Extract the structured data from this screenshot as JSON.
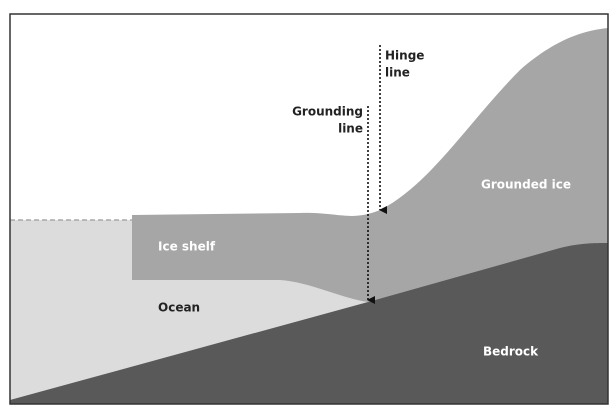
{
  "labels": {
    "hinge_line": [
      "Hinge",
      "line"
    ],
    "grounding_line": [
      "Grounding",
      "line"
    ],
    "grounded_ice": "Grounded ice",
    "ice_shelf": "Ice shelf",
    "ocean": "Ocean",
    "bedrock": "Bedrock"
  }
}
